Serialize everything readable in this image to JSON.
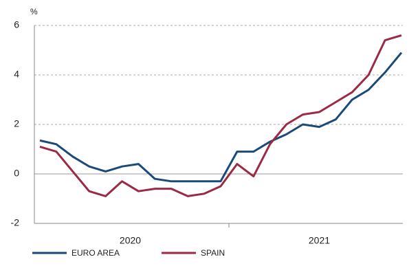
{
  "chart_data": {
    "type": "line",
    "y_unit": "%",
    "year_labels": [
      "2020",
      "2021"
    ],
    "months_per_year": 12,
    "series": [
      {
        "name": "EURO AREA",
        "color": "#1a4a7a",
        "values": [
          1.35,
          1.2,
          0.7,
          0.3,
          0.1,
          0.3,
          0.4,
          -0.2,
          -0.3,
          -0.3,
          -0.3,
          -0.3,
          0.9,
          0.9,
          1.3,
          1.6,
          2.0,
          1.9,
          2.2,
          3.0,
          3.4,
          4.1,
          4.9
        ]
      },
      {
        "name": "SPAIN",
        "color": "#9b2a45",
        "values": [
          1.1,
          0.9,
          0.1,
          -0.7,
          -0.9,
          -0.3,
          -0.7,
          -0.6,
          -0.6,
          -0.9,
          -0.8,
          -0.5,
          0.4,
          -0.1,
          1.2,
          2.0,
          2.4,
          2.5,
          2.9,
          3.3,
          4.0,
          5.4,
          5.6
        ]
      }
    ],
    "ylim": [
      -2,
      6
    ],
    "yticks": [
      -2,
      0,
      2,
      4,
      6
    ],
    "grid": true
  }
}
